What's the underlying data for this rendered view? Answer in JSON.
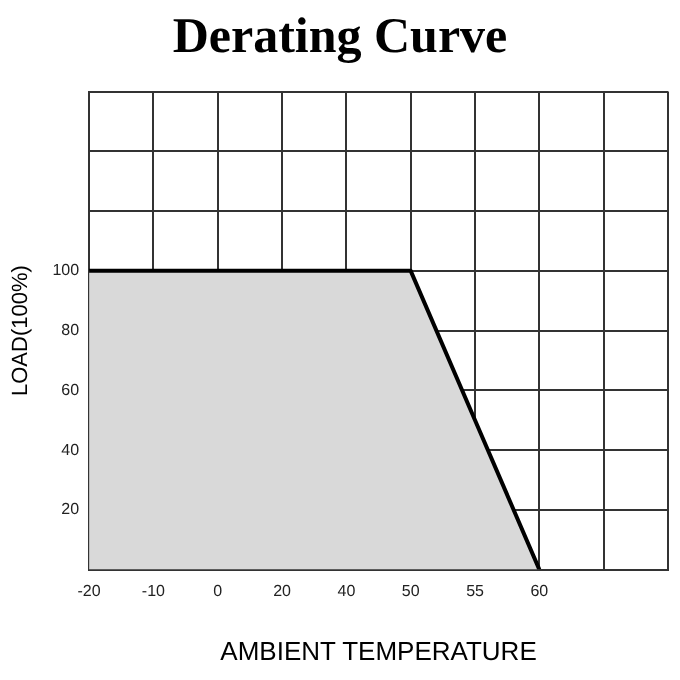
{
  "chart_data": {
    "type": "area",
    "title": "Derating Curve",
    "xlabel": "AMBIENT TEMPERATURE",
    "ylabel": "LOAD(100%)",
    "categories": [
      "-20",
      "-10",
      "0",
      "20",
      "40",
      "50",
      "55",
      "60",
      null,
      null
    ],
    "series": [
      {
        "color": "#000000",
        "values": [
          100,
          100,
          100,
          100,
          100,
          100,
          50,
          0,
          null,
          null
        ]
      }
    ],
    "ylim": [
      0,
      160
    ],
    "yticks": [
      {
        "value": 0,
        "label": null
      },
      20,
      40,
      60,
      80,
      100,
      {
        "value": 120,
        "label": null
      },
      {
        "value": 140,
        "label": null
      },
      {
        "value": 160,
        "label": null
      }
    ],
    "grid": true,
    "legend": false,
    "marker": "none",
    "line_style": "solid"
  }
}
